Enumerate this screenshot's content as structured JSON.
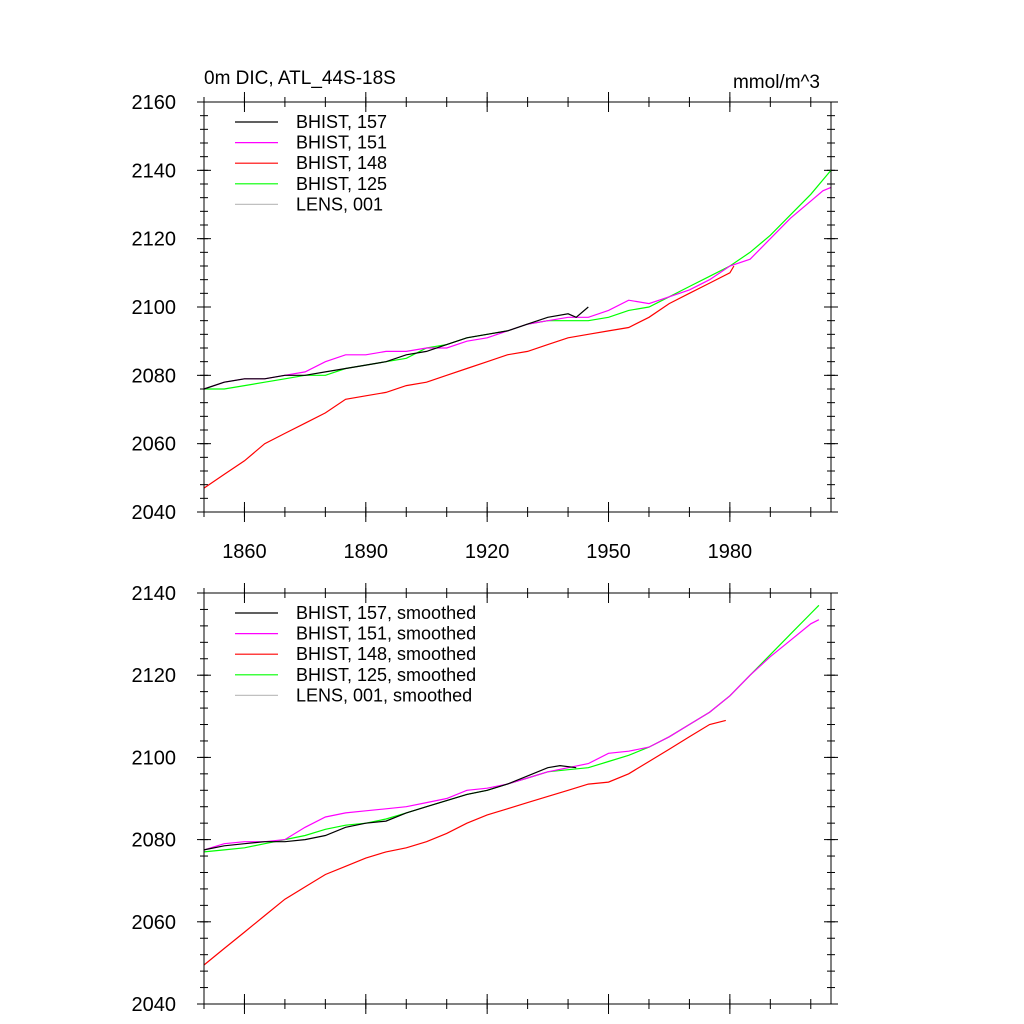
{
  "colors": {
    "157": "#000000",
    "151": "#ff00ff",
    "148": "#ff0000",
    "125": "#00ff00",
    "lens": "#c0c0c0"
  },
  "chart_data": [
    {
      "type": "line",
      "title": "0m DIC, ATL_44S-18S",
      "units": "mmol/m^3",
      "xlim": [
        1850,
        2005
      ],
      "ylim": [
        2040,
        2160
      ],
      "xticks": [
        1860,
        1890,
        1920,
        1950,
        1980
      ],
      "xtick_labels": [
        "1860",
        "1890",
        "1920",
        "1950",
        "1980"
      ],
      "yticks": [
        2040,
        2060,
        2080,
        2100,
        2120,
        2140,
        2160
      ],
      "ytick_labels": [
        "2040",
        "2060",
        "2080",
        "2100",
        "2120",
        "2140",
        "2160"
      ],
      "series": [
        {
          "name": "BHIST, 157",
          "key": "157",
          "x": [
            1850,
            1855,
            1860,
            1865,
            1870,
            1875,
            1880,
            1885,
            1890,
            1895,
            1900,
            1905,
            1910,
            1915,
            1920,
            1925,
            1930,
            1935,
            1940,
            1942,
            1945
          ],
          "y": [
            2076,
            2078,
            2079,
            2079,
            2080,
            2080,
            2081,
            2082,
            2083,
            2084,
            2086,
            2087,
            2089,
            2091,
            2092,
            2093,
            2095,
            2097,
            2098,
            2097,
            2100
          ]
        },
        {
          "name": "BHIST, 151",
          "key": "151",
          "x": [
            1850,
            1855,
            1860,
            1865,
            1870,
            1875,
            1880,
            1885,
            1890,
            1895,
            1900,
            1905,
            1910,
            1915,
            1920,
            1925,
            1930,
            1935,
            1940,
            1945,
            1950,
            1955,
            1960,
            1965,
            1970,
            1975,
            1980,
            1985,
            1990,
            1995,
            2000,
            2003,
            2005
          ],
          "y": [
            2076,
            2078,
            2079,
            2079,
            2080,
            2081,
            2084,
            2086,
            2086,
            2087,
            2087,
            2088,
            2088,
            2090,
            2091,
            2093,
            2095,
            2096,
            2097,
            2097,
            2099,
            2102,
            2101,
            2103,
            2105,
            2108,
            2112,
            2114,
            2120,
            2126,
            2131,
            2134,
            2135
          ]
        },
        {
          "name": "BHIST, 148",
          "key": "148",
          "x": [
            1850,
            1855,
            1860,
            1865,
            1870,
            1875,
            1880,
            1885,
            1890,
            1895,
            1900,
            1905,
            1910,
            1915,
            1920,
            1925,
            1930,
            1935,
            1940,
            1945,
            1950,
            1955,
            1960,
            1965,
            1970,
            1975,
            1980,
            1981
          ],
          "y": [
            2047,
            2051,
            2055,
            2060,
            2063,
            2066,
            2069,
            2073,
            2074,
            2075,
            2077,
            2078,
            2080,
            2082,
            2084,
            2086,
            2087,
            2089,
            2091,
            2092,
            2093,
            2094,
            2097,
            2101,
            2104,
            2107,
            2110,
            2112
          ]
        },
        {
          "name": "BHIST, 125",
          "key": "125",
          "x": [
            1850,
            1855,
            1860,
            1865,
            1870,
            1875,
            1880,
            1885,
            1890,
            1895,
            1900,
            1905,
            1910,
            1915,
            1920,
            1925,
            1930,
            1935,
            1940,
            1945,
            1950,
            1955,
            1960,
            1965,
            1970,
            1975,
            1980,
            1985,
            1990,
            1995,
            2000,
            2005
          ],
          "y": [
            2076,
            2076,
            2077,
            2078,
            2079,
            2080,
            2080,
            2082,
            2083,
            2084,
            2085,
            2088,
            2089,
            2091,
            2092,
            2093,
            2095,
            2096,
            2096,
            2096,
            2097,
            2099,
            2100,
            2103,
            2106,
            2109,
            2112,
            2116,
            2121,
            2127,
            2133,
            2140
          ]
        },
        {
          "name": "LENS, 001",
          "key": "lens",
          "x": [],
          "y": []
        }
      ]
    },
    {
      "type": "line",
      "xlim": [
        1850,
        2005
      ],
      "ylim": [
        2040,
        2140
      ],
      "xticks": [
        1860,
        1890,
        1920,
        1950,
        1980
      ],
      "yticks": [
        2040,
        2060,
        2080,
        2100,
        2120,
        2140
      ],
      "ytick_labels": [
        "2040",
        "2060",
        "2080",
        "2100",
        "2120",
        "2140"
      ],
      "series": [
        {
          "name": "BHIST, 157, smoothed",
          "key": "157",
          "x": [
            1850,
            1855,
            1860,
            1865,
            1870,
            1875,
            1880,
            1885,
            1890,
            1895,
            1900,
            1905,
            1910,
            1915,
            1920,
            1925,
            1930,
            1935,
            1938,
            1942
          ],
          "y": [
            2077.5,
            2078.5,
            2079,
            2079.5,
            2079.5,
            2080,
            2081,
            2083,
            2084,
            2084.5,
            2086.5,
            2088,
            2089.5,
            2091,
            2092,
            2093.5,
            2095.5,
            2097.5,
            2098,
            2097.5
          ]
        },
        {
          "name": "BHIST, 151, smoothed",
          "key": "151",
          "x": [
            1850,
            1855,
            1860,
            1865,
            1870,
            1875,
            1880,
            1885,
            1890,
            1895,
            1900,
            1905,
            1910,
            1915,
            1920,
            1925,
            1930,
            1935,
            1940,
            1945,
            1950,
            1955,
            1960,
            1965,
            1970,
            1975,
            1980,
            1985,
            1990,
            1995,
            2000,
            2002
          ],
          "y": [
            2077.5,
            2079,
            2079.5,
            2079.5,
            2080,
            2083,
            2085.5,
            2086.5,
            2087,
            2087.5,
            2088,
            2089,
            2090,
            2092,
            2092.5,
            2093.5,
            2095,
            2096.5,
            2097.5,
            2098.5,
            2101,
            2101.5,
            2102.5,
            2105,
            2108,
            2111,
            2115,
            2120,
            2124.5,
            2128.5,
            2132.5,
            2133.5
          ]
        },
        {
          "name": "BHIST, 148, smoothed",
          "key": "148",
          "x": [
            1850,
            1855,
            1860,
            1865,
            1870,
            1875,
            1880,
            1885,
            1890,
            1895,
            1900,
            1905,
            1910,
            1915,
            1920,
            1925,
            1930,
            1935,
            1940,
            1945,
            1950,
            1955,
            1960,
            1965,
            1970,
            1975,
            1979
          ],
          "y": [
            2049.5,
            2053.5,
            2057.5,
            2061.5,
            2065.5,
            2068.5,
            2071.5,
            2073.5,
            2075.5,
            2077,
            2078,
            2079.5,
            2081.5,
            2084,
            2086,
            2087.5,
            2089,
            2090.5,
            2092,
            2093.5,
            2094,
            2096,
            2099,
            2102,
            2105,
            2108,
            2109
          ]
        },
        {
          "name": "BHIST, 125, smoothed",
          "key": "125",
          "x": [
            1850,
            1855,
            1860,
            1865,
            1870,
            1875,
            1880,
            1885,
            1890,
            1895,
            1900,
            1905,
            1910,
            1915,
            1920,
            1925,
            1930,
            1935,
            1940,
            1945,
            1950,
            1955,
            1960,
            1965,
            1970,
            1975,
            1980,
            1985,
            1990,
            1995,
            2000,
            2002
          ],
          "y": [
            2077,
            2077.5,
            2078,
            2079,
            2080,
            2081,
            2082.5,
            2083.5,
            2084,
            2085,
            2086.5,
            2088,
            2089.5,
            2091,
            2092,
            2093.5,
            2095,
            2096.5,
            2097,
            2097.5,
            2099,
            2100.5,
            2102.5,
            2105,
            2108,
            2111,
            2115,
            2120,
            2125,
            2130,
            2135,
            2137
          ]
        },
        {
          "name": "LENS, 001, smoothed",
          "key": "lens",
          "x": [],
          "y": []
        }
      ]
    }
  ]
}
